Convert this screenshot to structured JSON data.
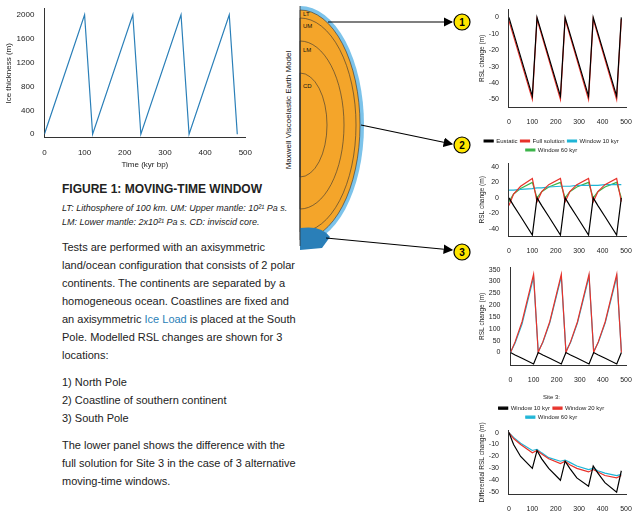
{
  "document": {
    "figure_title": "FIGURE 1: MOVING-TIME WINDOW",
    "caption_lines": [
      "LT: Lithosphere of 100 km. UM: Upper mantle: 10²¹ Pa s.",
      "LM: Lower mantle: 2x10²¹ Pa s. CD: inviscid core."
    ],
    "paragraph": [
      "Tests are performed with an axisymmetric land/ocean configuration that consists of 2 polar continents. The continents are separated by a homogeneous ocean. Coastlines are fixed and an axisymmetric ",
      "Ice Load",
      " is placed at the South Pole. Modelled RSL changes are shown for 3 locations:"
    ],
    "list": [
      "1) North Pole",
      "2) Coastline of southern continent",
      "3) South Pole"
    ],
    "closing": "The lower panel shows the difference with the full solution for Site 3 in the case of 3 alternative moving-time windows."
  },
  "diagram": {
    "label": "Maxwell Viscoelastic Earth Model",
    "layers": [
      "LT",
      "UM",
      "LM",
      "CD"
    ],
    "sites": [
      "1",
      "2",
      "3"
    ]
  },
  "chart_data": [
    {
      "type": "line",
      "x_label": "Time (kyr bp)",
      "y_label": "Ice thickness (m)",
      "grid": false,
      "x": [
        0,
        100,
        120,
        220,
        240,
        340,
        360,
        460,
        480
      ],
      "series": [
        {
          "color": "#2a7fb8",
          "values": [
            0,
            2000,
            0,
            2000,
            0,
            2000,
            0,
            2000,
            0
          ]
        }
      ],
      "xlim": [
        0,
        500
      ],
      "xticks": [
        0,
        100,
        200,
        300,
        400,
        500
      ],
      "ylim": [
        -60,
        2100
      ],
      "yticks": [
        0,
        400,
        800,
        1200,
        1600,
        2000
      ]
    },
    {
      "type": "line",
      "y_label": "RSL change (m)",
      "grid": false,
      "x": [
        0,
        100,
        120,
        220,
        240,
        340,
        360,
        460,
        480
      ],
      "series": [
        {
          "color": "#000000",
          "values": [
            0,
            -48,
            0,
            -48,
            0,
            -48,
            0,
            -48,
            0
          ]
        },
        {
          "color": "#e8322b",
          "values": [
            -2,
            -50,
            -1,
            -50,
            -1,
            -50,
            -1,
            -50,
            -1
          ]
        }
      ],
      "xlim": [
        0,
        500
      ],
      "xticks": [
        0,
        100,
        200,
        300,
        400,
        500
      ],
      "ylim": [
        -55,
        5
      ],
      "yticks": [
        -50,
        -40,
        -30,
        -20,
        -10,
        0
      ]
    },
    {
      "type": "line",
      "y_label": "RSL change (m)",
      "grid": false,
      "legend": "top",
      "x": [
        0,
        20,
        50,
        100,
        120,
        140,
        170,
        220,
        240,
        260,
        290,
        340,
        360,
        380,
        410,
        460,
        480
      ],
      "series": [
        {
          "name": "Eustatic",
          "color": "#000000",
          "values": [
            0,
            -10,
            -24,
            -48,
            0,
            -10,
            -24,
            -48,
            0,
            -10,
            -24,
            -48,
            0,
            -10,
            -24,
            -48,
            0
          ]
        },
        {
          "name": "Full solution",
          "color": "#e8322b",
          "values": [
            -10,
            5,
            15,
            25,
            -5,
            8,
            17,
            25,
            -5,
            8,
            17,
            25,
            -5,
            8,
            17,
            25,
            -5
          ]
        },
        {
          "name": "Window 10 kyr",
          "color": "#1fb5d6",
          "values": [
            10,
            10,
            11,
            12,
            13,
            13,
            14,
            15,
            15,
            15,
            16,
            16,
            16,
            16,
            17,
            17,
            17
          ]
        },
        {
          "name": "Window 60 kyr",
          "color": "#3cb44b",
          "values": [
            -5,
            5,
            12,
            20,
            0,
            8,
            14,
            20,
            0,
            8,
            14,
            20,
            0,
            8,
            14,
            20,
            0
          ]
        }
      ],
      "xlim": [
        0,
        500
      ],
      "xticks": [
        0,
        100,
        200,
        300,
        400,
        500
      ],
      "ylim": [
        -50,
        45
      ],
      "yticks": [
        -40,
        -20,
        0,
        20,
        40
      ]
    },
    {
      "type": "line",
      "y_label": "RSL change (m)",
      "grid": false,
      "x": [
        0,
        20,
        50,
        100,
        120,
        140,
        170,
        220,
        240,
        260,
        290,
        340,
        360,
        380,
        410,
        460,
        480
      ],
      "series": [
        {
          "color": "#000000",
          "values": [
            0,
            -10,
            -24,
            -48,
            0,
            -10,
            -24,
            -48,
            0,
            -10,
            -24,
            -48,
            0,
            -10,
            -24,
            -48,
            0
          ]
        },
        {
          "color": "#e8322b",
          "values": [
            0,
            45,
            130,
            330,
            0,
            45,
            130,
            330,
            0,
            45,
            130,
            330,
            0,
            45,
            130,
            330,
            0
          ]
        },
        {
          "color": "#1fb5d6",
          "values": [
            0,
            40,
            120,
            318,
            5,
            42,
            125,
            320,
            5,
            42,
            125,
            320,
            5,
            42,
            125,
            320,
            5
          ]
        }
      ],
      "xlim": [
        0,
        500
      ],
      "xticks": [
        0,
        100,
        200,
        300,
        400,
        500
      ],
      "ylim": [
        -55,
        360
      ],
      "yticks": [
        0,
        50,
        100,
        150,
        200,
        250,
        300,
        350
      ]
    },
    {
      "type": "line",
      "y_label": "Differential RSL change (m)",
      "grid": false,
      "legend": "top",
      "legend_title": "Site 3:",
      "x": [
        0,
        20,
        50,
        100,
        120,
        140,
        170,
        220,
        240,
        260,
        290,
        340,
        360,
        380,
        410,
        460,
        480
      ],
      "series": [
        {
          "name": "Window 10 kyr",
          "color": "#000000",
          "values": [
            0,
            -10,
            -20,
            -30,
            -15,
            -22,
            -30,
            -40,
            -24,
            -30,
            -38,
            -45,
            -28,
            -34,
            -42,
            -50,
            -32
          ]
        },
        {
          "name": "Window 20 kyr",
          "color": "#e8322b",
          "values": [
            0,
            -5,
            -10,
            -17,
            -15,
            -18,
            -22,
            -26,
            -24,
            -27,
            -30,
            -33,
            -31,
            -33,
            -36,
            -38,
            -36
          ]
        },
        {
          "name": "Window 60 kyr",
          "color": "#1fb5d6",
          "values": [
            0,
            -4,
            -9,
            -15,
            -14,
            -17,
            -21,
            -24,
            -23,
            -25,
            -28,
            -31,
            -30,
            -32,
            -34,
            -36,
            -35
          ]
        }
      ],
      "xlim": [
        0,
        500
      ],
      "xticks": [
        0,
        100,
        200,
        300,
        400,
        500
      ],
      "ylim": [
        -52,
        2
      ],
      "yticks": [
        -50,
        -40,
        -30,
        -20,
        -10,
        0
      ]
    }
  ]
}
